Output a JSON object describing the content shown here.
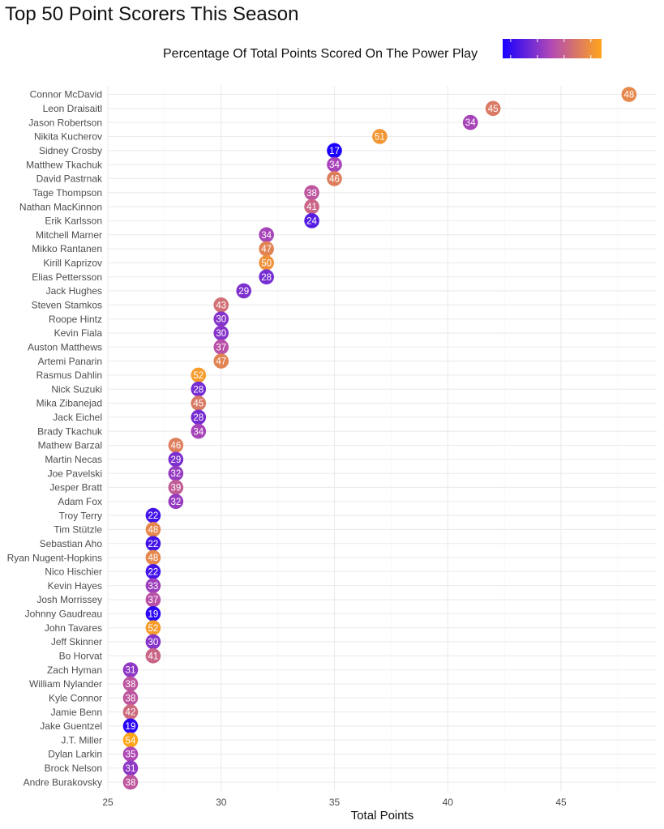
{
  "chart_data": {
    "type": "scatter",
    "title": "Top 50 Point Scorers This Season",
    "xlabel": "Total Points",
    "ylabel": "",
    "xlim": [
      25,
      49
    ],
    "xticks": [
      25,
      30,
      35,
      40,
      45
    ],
    "grid": true,
    "legend": {
      "title": "Percentage Of Total Points Scored On The Power Play",
      "placement": "top-right",
      "type": "color-gradient",
      "low_color": "#1a00ff",
      "mid_color": "#b34ab3",
      "high_color": "#ffa51a",
      "range": [
        17,
        54
      ]
    },
    "players": [
      {
        "name": "Connor McDavid",
        "points": 48,
        "pp_pct": 48
      },
      {
        "name": "Leon Draisaitl",
        "points": 42,
        "pp_pct": 45
      },
      {
        "name": "Jason Robertson",
        "points": 41,
        "pp_pct": 34
      },
      {
        "name": "Nikita Kucherov",
        "points": 37,
        "pp_pct": 51
      },
      {
        "name": "Sidney Crosby",
        "points": 35,
        "pp_pct": 17
      },
      {
        "name": "Matthew Tkachuk",
        "points": 35,
        "pp_pct": 34
      },
      {
        "name": "David Pastrnak",
        "points": 35,
        "pp_pct": 46
      },
      {
        "name": "Tage Thompson",
        "points": 34,
        "pp_pct": 38
      },
      {
        "name": "Nathan MacKinnon",
        "points": 34,
        "pp_pct": 41
      },
      {
        "name": "Erik Karlsson",
        "points": 34,
        "pp_pct": 24
      },
      {
        "name": "Mitchell Marner",
        "points": 32,
        "pp_pct": 34
      },
      {
        "name": "Mikko Rantanen",
        "points": 32,
        "pp_pct": 47
      },
      {
        "name": "Kirill Kaprizov",
        "points": 32,
        "pp_pct": 50
      },
      {
        "name": "Elias Pettersson",
        "points": 32,
        "pp_pct": 28
      },
      {
        "name": "Jack Hughes",
        "points": 31,
        "pp_pct": 29
      },
      {
        "name": "Steven Stamkos",
        "points": 30,
        "pp_pct": 43
      },
      {
        "name": "Roope Hintz",
        "points": 30,
        "pp_pct": 30
      },
      {
        "name": "Kevin Fiala",
        "points": 30,
        "pp_pct": 30
      },
      {
        "name": "Auston Matthews",
        "points": 30,
        "pp_pct": 37
      },
      {
        "name": "Artemi Panarin",
        "points": 30,
        "pp_pct": 47
      },
      {
        "name": "Rasmus Dahlin",
        "points": 29,
        "pp_pct": 52
      },
      {
        "name": "Nick Suzuki",
        "points": 29,
        "pp_pct": 28
      },
      {
        "name": "Mika Zibanejad",
        "points": 29,
        "pp_pct": 45
      },
      {
        "name": "Jack Eichel",
        "points": 29,
        "pp_pct": 28
      },
      {
        "name": "Brady Tkachuk",
        "points": 29,
        "pp_pct": 34
      },
      {
        "name": "Mathew Barzal",
        "points": 28,
        "pp_pct": 46
      },
      {
        "name": "Martin Necas",
        "points": 28,
        "pp_pct": 29
      },
      {
        "name": "Joe Pavelski",
        "points": 28,
        "pp_pct": 32
      },
      {
        "name": "Jesper Bratt",
        "points": 28,
        "pp_pct": 39
      },
      {
        "name": "Adam Fox",
        "points": 28,
        "pp_pct": 32
      },
      {
        "name": "Troy Terry",
        "points": 27,
        "pp_pct": 22
      },
      {
        "name": "Tim Stützle",
        "points": 27,
        "pp_pct": 48
      },
      {
        "name": "Sebastian Aho",
        "points": 27,
        "pp_pct": 22
      },
      {
        "name": "Ryan Nugent-Hopkins",
        "points": 27,
        "pp_pct": 48
      },
      {
        "name": "Nico Hischier",
        "points": 27,
        "pp_pct": 22
      },
      {
        "name": "Kevin Hayes",
        "points": 27,
        "pp_pct": 33
      },
      {
        "name": "Josh Morrissey",
        "points": 27,
        "pp_pct": 37
      },
      {
        "name": "Johnny Gaudreau",
        "points": 27,
        "pp_pct": 19
      },
      {
        "name": "John Tavares",
        "points": 27,
        "pp_pct": 52
      },
      {
        "name": "Jeff Skinner",
        "points": 27,
        "pp_pct": 30
      },
      {
        "name": "Bo Horvat",
        "points": 27,
        "pp_pct": 41
      },
      {
        "name": "Zach Hyman",
        "points": 26,
        "pp_pct": 31
      },
      {
        "name": "William Nylander",
        "points": 26,
        "pp_pct": 38
      },
      {
        "name": "Kyle Connor",
        "points": 26,
        "pp_pct": 38
      },
      {
        "name": "Jamie Benn",
        "points": 26,
        "pp_pct": 42
      },
      {
        "name": "Jake Guentzel",
        "points": 26,
        "pp_pct": 19
      },
      {
        "name": "J.T. Miller",
        "points": 26,
        "pp_pct": 54
      },
      {
        "name": "Dylan Larkin",
        "points": 26,
        "pp_pct": 35
      },
      {
        "name": "Brock Nelson",
        "points": 26,
        "pp_pct": 31
      },
      {
        "name": "Andre Burakovsky",
        "points": 26,
        "pp_pct": 38
      }
    ]
  }
}
